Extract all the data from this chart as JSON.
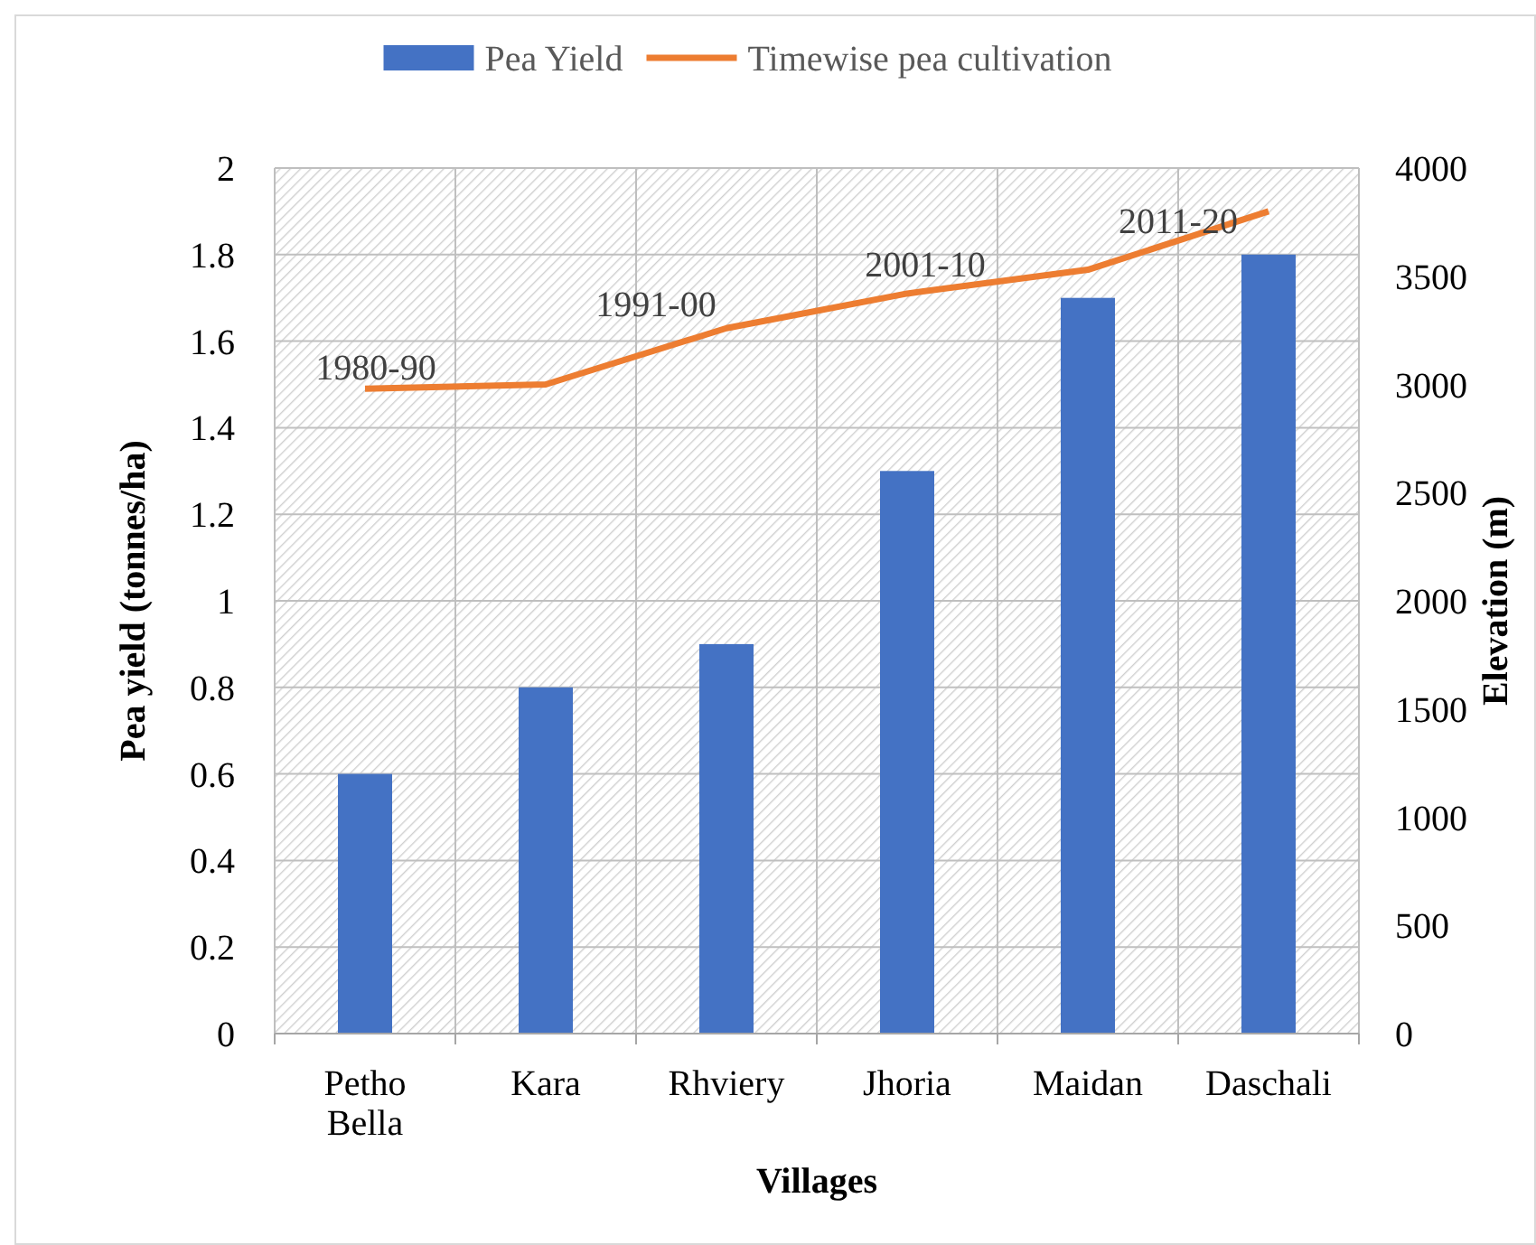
{
  "chart_data": {
    "type": "bar",
    "xlabel": "Villages",
    "ylabel": "Pea yield (tonnes/ha)",
    "y2label": "Elevation (m)",
    "categories": [
      "Petho Bella",
      "Kara",
      "Rhviery",
      "Jhoria",
      "Maidan",
      "Daschali"
    ],
    "series": [
      {
        "name": "Pea Yield",
        "color": "#4472c4",
        "values": [
          0.6,
          0.8,
          0.9,
          1.3,
          1.7,
          1.8
        ]
      },
      {
        "name": "Timewise pea cultivation",
        "type": "line",
        "axis": "y2",
        "color": "#ed7d31",
        "values": [
          2980,
          3000,
          3260,
          3420,
          3530,
          3800
        ]
      }
    ],
    "ylim": [
      0,
      2
    ],
    "yticks": [
      0,
      0.2,
      0.4,
      0.6,
      0.8,
      1,
      1.2,
      1.4,
      1.6,
      1.8,
      2
    ],
    "y2lim": [
      0,
      4000
    ],
    "y2ticks": [
      0,
      500,
      1000,
      1500,
      2000,
      2500,
      3000,
      3500,
      4000
    ],
    "annotations": [
      "1980-90",
      "1991-00",
      "2001-10",
      "2011-20"
    ],
    "grid": true,
    "legend": "top",
    "marker": "none",
    "line_style": "solid"
  }
}
